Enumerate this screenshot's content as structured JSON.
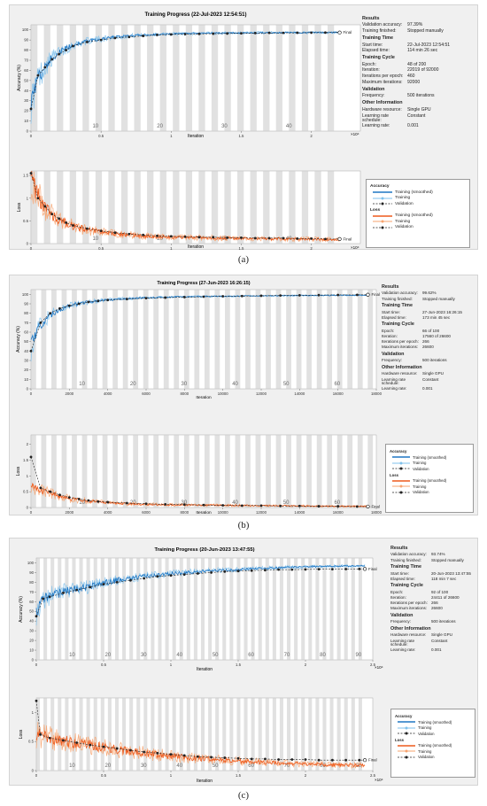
{
  "colors": {
    "accuracy": "#1f77c4",
    "accuracy_light": "#7fc1ec",
    "loss": "#ee5a1c",
    "loss_light": "#f7a36e",
    "validation": "#222222",
    "stripe": "#c8c8c8"
  },
  "panels": [
    {
      "caption": "(a)",
      "title": "Training Progress (22-Jul-2023 12:54:51)",
      "final_label": "Final",
      "acc_ylabel": "Accuracy (%)",
      "loss_ylabel": "Loss",
      "xlabel": "Iteration",
      "x_exponent": "×10⁴",
      "acc_yticks": [
        "0",
        "10",
        "20",
        "30",
        "40",
        "50",
        "60",
        "70",
        "80",
        "90",
        "100"
      ],
      "loss_yticks": [
        "0",
        "0.5",
        "1",
        "1.5"
      ],
      "xticks": [
        "0",
        "0.5",
        "1",
        "1.5",
        "2"
      ],
      "epoch_labels": [
        "10",
        "20",
        "30",
        "40"
      ],
      "info": {
        "results_h": "Results",
        "val_acc_k": "Validation accuracy:",
        "val_acc_v": "97.39%",
        "finished_k": "Training finished:",
        "finished_v": "Stopped manually",
        "time_h": "Training Time",
        "start_k": "Start time:",
        "start_v": "22-Jul-2023 12:54:51",
        "elapsed_k": "Elapsed time:",
        "elapsed_v": "114 min 26 sec",
        "cycle_h": "Training Cycle",
        "epoch_k": "Epoch:",
        "epoch_v": "48 of 200",
        "iter_k": "Iteration:",
        "iter_v": "22019 of 92000",
        "ipe_k": "Iterations per epoch:",
        "ipe_v": "460",
        "maxit_k": "Maximum iterations:",
        "maxit_v": "92000",
        "valid_h": "Validation",
        "freq_k": "Frequency:",
        "freq_v": "500 iterations",
        "other_h": "Other Information",
        "hw_k": "Hardware resource:",
        "hw_v": "Single GPU",
        "lrs_k": "Learning rate schedule:",
        "lrs_v": "Constant",
        "lr_k": "Learning rate:",
        "lr_v": "0.001"
      },
      "legend": {
        "acc_h": "Accuracy",
        "loss_h": "Loss",
        "smoothed": "Training (smoothed)",
        "training": "Training",
        "validation": "Validation"
      }
    },
    {
      "caption": "(b)",
      "title": "Training Progress (27-Jun-2023 16:26:15)",
      "final_label": "Final",
      "acc_ylabel": "Accuracy (%)",
      "loss_ylabel": "Loss",
      "xlabel": "Iteration",
      "x_exponent": "",
      "acc_yticks": [
        "0",
        "10",
        "20",
        "30",
        "40",
        "50",
        "60",
        "70",
        "80",
        "90",
        "100"
      ],
      "loss_yticks": [
        "0",
        "0.5",
        "1",
        "1.5",
        "2"
      ],
      "xticks": [
        "0",
        "2000",
        "4000",
        "6000",
        "8000",
        "10000",
        "12000",
        "14000",
        "16000",
        "18000"
      ],
      "epoch_labels": [
        "10",
        "20",
        "30",
        "40",
        "50",
        "60"
      ],
      "info": {
        "results_h": "Results",
        "val_acc_k": "Validation accuracy:",
        "val_acc_v": "99.62%",
        "finished_k": "Training finished:",
        "finished_v": "Stopped manually",
        "time_h": "Training Time",
        "start_k": "Start time:",
        "start_v": "27-Jun-2023 16:26:15",
        "elapsed_k": "Elapsed time:",
        "elapsed_v": "173 min 45 sec",
        "cycle_h": "Training Cycle",
        "epoch_k": "Epoch:",
        "epoch_v": "66 of 100",
        "iter_k": "Iteration:",
        "iter_v": "17560 of 26600",
        "ipe_k": "Iterations per epoch:",
        "ipe_v": "266",
        "maxit_k": "Maximum iterations:",
        "maxit_v": "26600",
        "valid_h": "Validation",
        "freq_k": "Frequency:",
        "freq_v": "500 iterations",
        "other_h": "Other Information",
        "hw_k": "Hardware resource:",
        "hw_v": "Single GPU",
        "lrs_k": "Learning rate schedule:",
        "lrs_v": "Constant",
        "lr_k": "Learning rate:",
        "lr_v": "0.001"
      },
      "legend": {
        "acc_h": "Accuracy",
        "loss_h": "Loss",
        "smoothed": "Training (smoothed)",
        "training": "Training",
        "validation": "Validation"
      }
    },
    {
      "caption": "(c)",
      "title": "Training Progress (20-Jun-2023 13:47:55)",
      "final_label": "Final",
      "acc_ylabel": "Accuracy (%)",
      "loss_ylabel": "Loss",
      "xlabel": "Iteration",
      "x_exponent": "×10⁴",
      "acc_yticks": [
        "0",
        "10",
        "20",
        "30",
        "40",
        "50",
        "60",
        "70",
        "80",
        "90",
        "100"
      ],
      "loss_yticks": [
        "0",
        "0.5",
        "1"
      ],
      "xticks": [
        "0",
        "0.5",
        "1",
        "1.5",
        "2",
        "2.5"
      ],
      "epoch_labels": [
        "10",
        "20",
        "30",
        "40",
        "50",
        "60",
        "70",
        "80",
        "90"
      ],
      "info": {
        "results_h": "Results",
        "val_acc_k": "Validation accuracy:",
        "val_acc_v": "93.74%",
        "finished_k": "Training finished:",
        "finished_v": "Stopped manually",
        "time_h": "Training Time",
        "start_k": "Start time:",
        "start_v": "20-Jun-2023 13:47:55",
        "elapsed_k": "Elapsed time:",
        "elapsed_v": "118 min 7 sec",
        "cycle_h": "Training Cycle",
        "epoch_k": "Epoch:",
        "epoch_v": "92 of 100",
        "iter_k": "Iteration:",
        "iter_v": "24411 of 26600",
        "ipe_k": "Iterations per epoch:",
        "ipe_v": "266",
        "maxit_k": "Maximum iterations:",
        "maxit_v": "26600",
        "valid_h": "Validation",
        "freq_k": "Frequency:",
        "freq_v": "500 iterations",
        "other_h": "Other Information",
        "hw_k": "Hardware resource:",
        "hw_v": "Single GPU",
        "lrs_k": "Learning rate schedule:",
        "lrs_v": "Constant",
        "lr_k": "Learning rate:",
        "lr_v": "0.001"
      },
      "legend": {
        "acc_h": "Accuracy",
        "loss_h": "Loss",
        "smoothed": "Training (smoothed)",
        "training": "Training",
        "validation": "Validation"
      }
    }
  ],
  "chart_data": [
    {
      "type": "line",
      "title": "Training Progress (22-Jul-2023 12:54:51)",
      "xlabel": "Iteration",
      "acc_ylabel": "Accuracy (%)",
      "loss_ylabel": "Loss",
      "xlim": [
        0,
        23500
      ],
      "acc_ylim": [
        0,
        105
      ],
      "loss_ylim": [
        0,
        1.6
      ],
      "iter_per_epoch": 460,
      "last_iteration": 22019,
      "grid": "epoch stripes",
      "legend": "right",
      "series": [
        {
          "name": "Training (smoothed)",
          "metric": "accuracy",
          "x": [
            0,
            500,
            1000,
            1500,
            2000,
            3000,
            4000,
            5000,
            6000,
            8000,
            10000,
            12000,
            14000,
            16000,
            18000,
            20000,
            22019
          ],
          "values": [
            28,
            52,
            64,
            72,
            78,
            85,
            89,
            91,
            93,
            95,
            96,
            96.5,
            97,
            97,
            97.2,
            97.3,
            97.4
          ]
        },
        {
          "name": "Validation",
          "metric": "accuracy",
          "x": [
            0,
            500,
            1000,
            1500,
            2000,
            2500,
            3000,
            4000,
            5000,
            6000,
            7000,
            8000,
            9000,
            10000,
            11000,
            12000,
            13000,
            14000,
            15000,
            16000,
            17000,
            18000,
            19000,
            20000,
            21000,
            22019
          ],
          "values": [
            22,
            55,
            63,
            71,
            76,
            80,
            84,
            88,
            90,
            92,
            93,
            94,
            95,
            95.5,
            95.8,
            96,
            96.2,
            96.4,
            96.6,
            96.8,
            97,
            97,
            97.1,
            97.2,
            97.3,
            97.39
          ]
        },
        {
          "name": "Training (smoothed)",
          "metric": "loss",
          "x": [
            0,
            500,
            1000,
            1500,
            2000,
            3000,
            4000,
            5000,
            6000,
            8000,
            10000,
            12000,
            14000,
            16000,
            18000,
            20000,
            22019
          ],
          "values": [
            1.5,
            1.05,
            0.8,
            0.63,
            0.52,
            0.38,
            0.3,
            0.25,
            0.21,
            0.17,
            0.14,
            0.13,
            0.12,
            0.11,
            0.1,
            0.1,
            0.09
          ]
        },
        {
          "name": "Validation",
          "metric": "loss",
          "x": [
            0,
            500,
            1000,
            1500,
            2000,
            2500,
            3000,
            4000,
            5000,
            6000,
            7000,
            8000,
            9000,
            10000,
            11000,
            12000,
            13000,
            14000,
            15000,
            16000,
            17000,
            18000,
            19000,
            20000,
            21000,
            22019
          ],
          "values": [
            1.55,
            1.0,
            0.82,
            0.65,
            0.55,
            0.46,
            0.4,
            0.33,
            0.28,
            0.24,
            0.21,
            0.19,
            0.17,
            0.16,
            0.15,
            0.14,
            0.14,
            0.13,
            0.13,
            0.12,
            0.12,
            0.12,
            0.11,
            0.11,
            0.1,
            0.1
          ]
        }
      ]
    },
    {
      "type": "line",
      "title": "Training Progress (27-Jun-2023 16:26:15)",
      "xlabel": "Iteration",
      "acc_ylabel": "Accuracy (%)",
      "loss_ylabel": "Loss",
      "xlim": [
        0,
        18000
      ],
      "acc_ylim": [
        0,
        105
      ],
      "loss_ylim": [
        0,
        2.3
      ],
      "iter_per_epoch": 266,
      "last_iteration": 17560,
      "grid": "epoch stripes",
      "legend": "right",
      "series": [
        {
          "name": "Training (smoothed)",
          "metric": "accuracy",
          "x": [
            0,
            300,
            600,
            1000,
            1500,
            2000,
            3000,
            4000,
            5000,
            6000,
            8000,
            10000,
            12000,
            14000,
            16000,
            17560
          ],
          "values": [
            45,
            62,
            70,
            78,
            84,
            88,
            92,
            94,
            95.5,
            96.5,
            97.5,
            98,
            98.5,
            98.8,
            99,
            99.2
          ]
        },
        {
          "name": "Validation",
          "metric": "accuracy",
          "x": [
            0,
            500,
            1000,
            1500,
            2000,
            2500,
            3000,
            3500,
            4000,
            5000,
            6000,
            7000,
            8000,
            9000,
            10000,
            11000,
            12000,
            13000,
            14000,
            15000,
            16000,
            17000,
            17560
          ],
          "values": [
            40,
            70,
            80,
            85,
            88,
            90,
            92,
            93,
            94,
            95,
            96,
            96.5,
            97,
            97.5,
            98,
            98.2,
            98.5,
            98.8,
            99,
            99.2,
            99.4,
            99.5,
            99.62
          ]
        },
        {
          "name": "Training (smoothed)",
          "metric": "loss",
          "x": [
            0,
            50,
            100,
            200,
            500,
            1000,
            1500,
            2000,
            3000,
            4000,
            5000,
            6000,
            8000,
            10000,
            12000,
            14000,
            16000,
            17560
          ],
          "values": [
            0.75,
            0.75,
            0.72,
            0.62,
            0.55,
            0.45,
            0.35,
            0.28,
            0.2,
            0.15,
            0.12,
            0.1,
            0.08,
            0.07,
            0.06,
            0.05,
            0.04,
            0.04
          ]
        },
        {
          "name": "Validation",
          "metric": "loss",
          "x": [
            0,
            500,
            1000,
            1500,
            2000,
            2500,
            3000,
            3500,
            4000,
            5000,
            6000,
            7000,
            8000,
            9000,
            10000,
            11000,
            12000,
            13000,
            14000,
            15000,
            16000,
            17000,
            17560
          ],
          "values": [
            1.6,
            0.62,
            0.5,
            0.4,
            0.32,
            0.27,
            0.22,
            0.19,
            0.17,
            0.14,
            0.12,
            0.1,
            0.09,
            0.08,
            0.07,
            0.06,
            0.06,
            0.05,
            0.05,
            0.04,
            0.04,
            0.03,
            0.03
          ]
        }
      ]
    },
    {
      "type": "line",
      "title": "Training Progress (20-Jun-2023 13:47:55)",
      "xlabel": "Iteration",
      "acc_ylabel": "Accuracy (%)",
      "loss_ylabel": "Loss",
      "xlim": [
        0,
        25000
      ],
      "acc_ylim": [
        0,
        105
      ],
      "loss_ylim": [
        0,
        1.25
      ],
      "iter_per_epoch": 266,
      "last_iteration": 24411,
      "grid": "epoch stripes",
      "legend": "right",
      "series": [
        {
          "name": "Training (smoothed)",
          "metric": "accuracy",
          "x": [
            0,
            500,
            1000,
            2000,
            3000,
            4000,
            5000,
            6000,
            8000,
            10000,
            12000,
            14000,
            16000,
            18000,
            20000,
            22000,
            24411
          ],
          "values": [
            50,
            62,
            66,
            70,
            73,
            76,
            79,
            82,
            86,
            89,
            91,
            92.5,
            94,
            95,
            96,
            96.5,
            97
          ]
        },
        {
          "name": "Validation",
          "metric": "accuracy",
          "x": [
            0,
            500,
            1000,
            2000,
            3000,
            4000,
            5000,
            6000,
            7000,
            8000,
            9000,
            10000,
            11000,
            12000,
            13000,
            14000,
            15000,
            16000,
            17000,
            18000,
            19000,
            20000,
            21000,
            22000,
            23000,
            24000,
            24411
          ],
          "values": [
            45,
            63,
            65,
            69,
            72,
            75,
            78,
            80,
            82,
            84,
            86,
            87,
            88,
            89,
            90,
            91,
            91.5,
            92,
            92.5,
            93,
            93,
            93.2,
            93.5,
            93.5,
            93.6,
            93.7,
            93.74
          ]
        },
        {
          "name": "Training (smoothed)",
          "metric": "loss",
          "x": [
            0,
            500,
            1000,
            2000,
            3000,
            4000,
            5000,
            6000,
            8000,
            10000,
            12000,
            14000,
            16000,
            18000,
            20000,
            22000,
            24411
          ],
          "values": [
            0.62,
            0.58,
            0.56,
            0.52,
            0.48,
            0.44,
            0.4,
            0.36,
            0.3,
            0.25,
            0.21,
            0.18,
            0.15,
            0.13,
            0.11,
            0.1,
            0.09
          ]
        },
        {
          "name": "Validation",
          "metric": "loss",
          "x": [
            0,
            300,
            1000,
            2000,
            3000,
            4000,
            5000,
            6000,
            7000,
            8000,
            9000,
            10000,
            11000,
            12000,
            13000,
            14000,
            15000,
            16000,
            17000,
            18000,
            19000,
            20000,
            21000,
            22000,
            23000,
            24000,
            24411
          ],
          "values": [
            1.2,
            0.62,
            0.56,
            0.52,
            0.48,
            0.44,
            0.41,
            0.38,
            0.35,
            0.32,
            0.3,
            0.28,
            0.26,
            0.24,
            0.23,
            0.22,
            0.21,
            0.2,
            0.2,
            0.19,
            0.19,
            0.19,
            0.18,
            0.18,
            0.18,
            0.18,
            0.18
          ]
        }
      ]
    }
  ]
}
